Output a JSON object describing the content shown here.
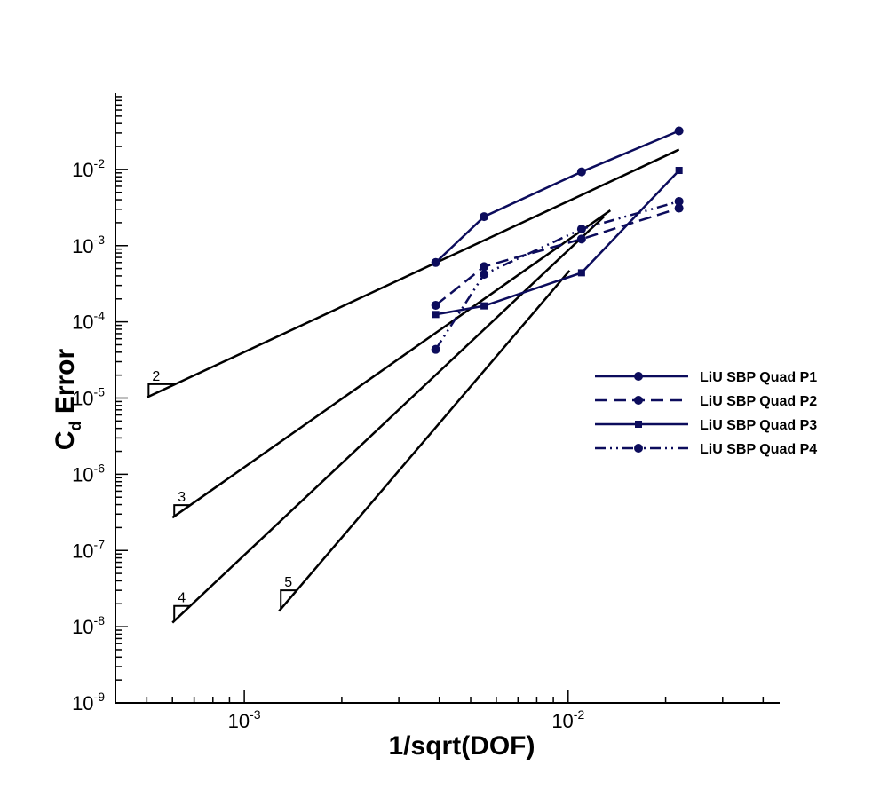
{
  "chart_data": {
    "type": "line",
    "xscale": "log",
    "yscale": "log",
    "xlabel": "1/sqrt(DOF)",
    "ylabel": {
      "main": "C",
      "sub": "d",
      "rest": " Error"
    },
    "xlim": [
      0.0004,
      0.045
    ],
    "ylim": [
      1e-09,
      0.1
    ],
    "x_ticks": [
      {
        "base": "10",
        "exp": "-3",
        "value": 0.001
      },
      {
        "base": "10",
        "exp": "-2",
        "value": 0.01
      }
    ],
    "y_ticks": [
      {
        "base": "10",
        "exp": "-2",
        "value": 0.01
      },
      {
        "base": "10",
        "exp": "-3",
        "value": 0.001
      },
      {
        "base": "10",
        "exp": "-4",
        "value": 0.0001
      },
      {
        "base": "10",
        "exp": "-5",
        "value": 1e-05
      },
      {
        "base": "10",
        "exp": "-6",
        "value": 1e-06
      },
      {
        "base": "10",
        "exp": "-7",
        "value": 1e-07
      },
      {
        "base": "10",
        "exp": "-8",
        "value": 1e-08
      },
      {
        "base": "10",
        "exp": "-9",
        "value": 1e-09
      }
    ],
    "series": [
      {
        "name": "LiU SBP Quad P1",
        "marker": "circle",
        "dash": "solid",
        "x": [
          0.0039,
          0.0055,
          0.011,
          0.022
        ],
        "y": [
          0.0006,
          0.0024,
          0.0093,
          0.032
        ]
      },
      {
        "name": "LiU SBP Quad P2",
        "marker": "circle",
        "dash": "dashed",
        "x": [
          0.0039,
          0.0055,
          0.011,
          0.022
        ],
        "y": [
          0.000165,
          0.00053,
          0.00122,
          0.0031
        ]
      },
      {
        "name": "LiU SBP Quad P3",
        "marker": "square",
        "dash": "solid",
        "x": [
          0.0039,
          0.0055,
          0.011,
          0.022
        ],
        "y": [
          0.000125,
          0.000162,
          0.00044,
          0.0097
        ]
      },
      {
        "name": "LiU SBP Quad P4",
        "marker": "circle",
        "dash": "dashdotdot",
        "x": [
          0.0039,
          0.0055,
          0.011,
          0.022
        ],
        "y": [
          4.35e-05,
          0.00042,
          0.00165,
          0.0038
        ]
      }
    ],
    "reference_lines": [
      {
        "label": "2",
        "x": [
          0.0005,
          0.022
        ],
        "y": [
          1.02e-05,
          0.0182
        ]
      },
      {
        "label": "3",
        "x": [
          0.0006,
          0.0135
        ],
        "y": [
          2.7e-07,
          0.0029
        ]
      },
      {
        "label": "4",
        "x": [
          0.0006,
          0.0129
        ],
        "y": [
          1.13e-08,
          0.0024
        ]
      },
      {
        "label": "5",
        "x": [
          0.00128,
          0.0101
        ],
        "y": [
          1.6e-08,
          0.00047
        ]
      }
    ],
    "legend_position": "right"
  },
  "colors": {
    "series": "#0c0c5c",
    "reference": "#000000",
    "axis": "#000000"
  }
}
